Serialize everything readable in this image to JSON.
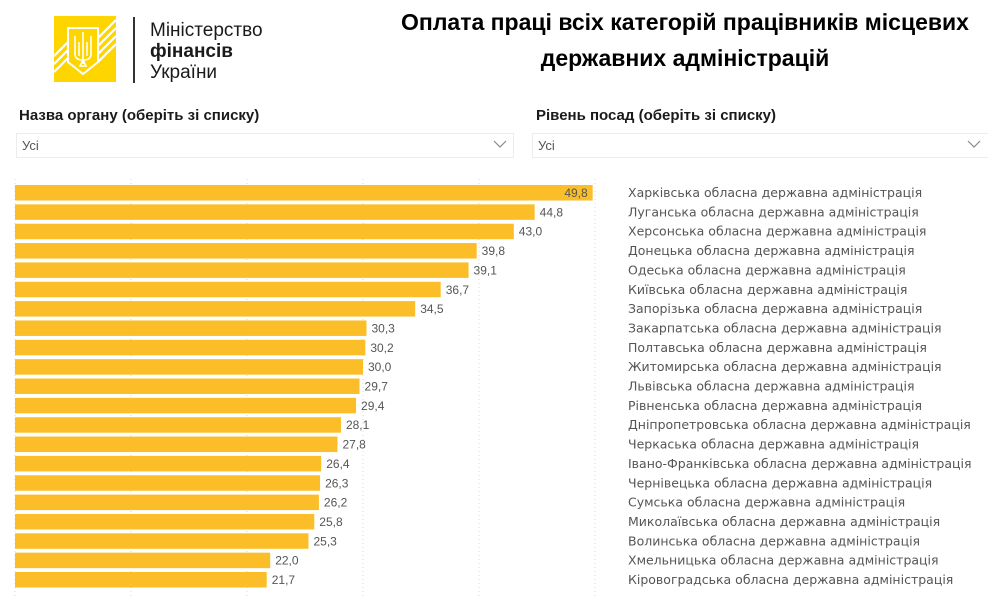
{
  "header": {
    "logo": {
      "icon": "trident-emblem-icon",
      "line1": "Міністерство",
      "line2": "фінансів",
      "line3": "України",
      "brand_color": "#FFD500"
    },
    "title_line1": "Оплата праці всіх категорій працівників місцевих",
    "title_line2": "державних адміністрацій"
  },
  "filters": {
    "organ": {
      "label": "Назва органу (оберіть зі списку)",
      "value": "Усі",
      "icon": "chevron-down-icon"
    },
    "level": {
      "label": "Рівень посад (оберіть зі списку)",
      "value": "Усі",
      "icon": "chevron-down-icon"
    }
  },
  "chart_data": {
    "type": "bar",
    "orientation": "horizontal",
    "title": "Оплата праці всіх категорій працівників місцевих державних адміністрацій",
    "xlabel": "",
    "ylabel": "",
    "xlim": [
      0,
      50
    ],
    "grid": true,
    "bar_color": "#FBBE29",
    "categories": [
      "Харківська обласна державна адміністрація",
      "Луганська обласна державна адміністрація",
      "Херсонська обласна державна адміністрація",
      "Донецька обласна державна адміністрація",
      "Одеська обласна державна адміністрація",
      "Київська обласна державна адміністрація",
      "Запорізька обласна державна адміністрація",
      "Закарпатська обласна державна адміністрація",
      "Полтавська обласна державна адміністрація",
      "Житомирська обласна державна адміністрація",
      "Львівська обласна державна адміністрація",
      "Рівненська обласна державна адміністрація",
      "Дніпропетровська обласна державна адміністрація",
      "Черкаська обласна державна адміністрація",
      "Івано-Франківська обласна державна адміністрація",
      "Чернівецька обласна державна адміністрація",
      "Сумська обласна державна адміністрація",
      "Миколаївська обласна державна адміністрація",
      "Волинська обласна державна адміністрація",
      "Хмельницька обласна державна адміністрація",
      "Кіровоградська обласна державна адміністрація"
    ],
    "values": [
      49.8,
      44.8,
      43.0,
      39.8,
      39.1,
      36.7,
      34.5,
      30.3,
      30.2,
      30.0,
      29.7,
      29.4,
      28.1,
      27.8,
      26.4,
      26.3,
      26.2,
      25.8,
      25.3,
      22.0,
      21.7
    ],
    "value_labels": [
      "49,8",
      "44,8",
      "43,0",
      "39,8",
      "39,1",
      "36,7",
      "34,5",
      "30,3",
      "30,2",
      "30,0",
      "29,7",
      "29,4",
      "28,1",
      "27,8",
      "26,4",
      "26,3",
      "26,2",
      "25,8",
      "25,3",
      "22,0",
      "21,7"
    ]
  }
}
